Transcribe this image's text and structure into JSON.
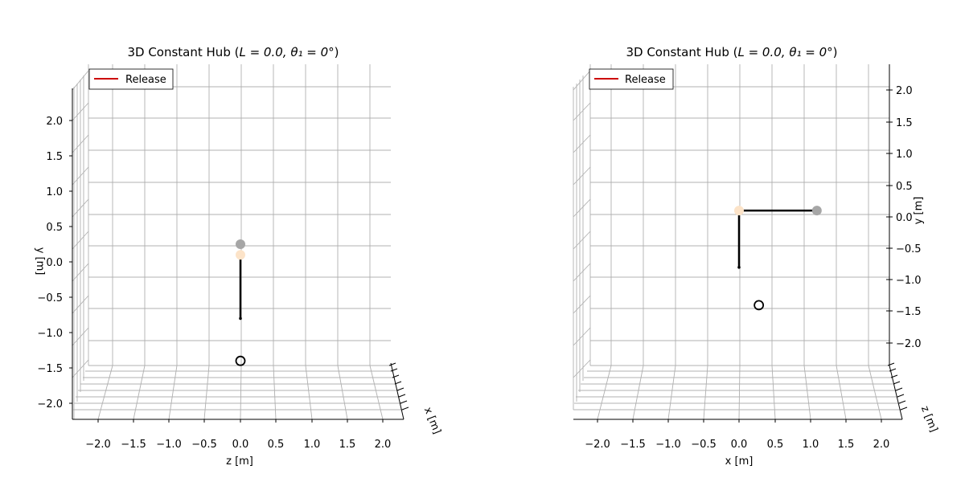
{
  "chart_data": [
    {
      "type": "scatter",
      "projection": "3d",
      "title_text": "3D Constant Hub (",
      "title_math": "L = 0.0, θ₁ = 0°",
      "title_close": ")",
      "view": "z-axis horizontal, y-axis vertical (left), x-axis depth",
      "xlabel": "z [m]",
      "ylabel": "y [m]",
      "depthlabel": "x [m]",
      "horizontal_ticks": [
        "−2.0",
        "−1.5",
        "−1.0",
        "−0.5",
        "0.0",
        "0.5",
        "1.0",
        "1.5",
        "2.0"
      ],
      "vertical_ticks": [
        "−2.0",
        "−1.5",
        "−1.0",
        "−0.5",
        "0.0",
        "0.5",
        "1.0",
        "1.5",
        "2.0"
      ],
      "legend": {
        "entries": [
          {
            "label": "Release",
            "color": "#cc0000"
          }
        ],
        "location": "top-left"
      },
      "grid": true,
      "links": [
        {
          "from": [
            0.0,
            -0.8
          ],
          "to": [
            0.0,
            0.1
          ]
        }
      ],
      "points": [
        {
          "name": "pivot",
          "h": 0.0,
          "v": -0.8,
          "color": "#000000",
          "kind": "small-dot"
        },
        {
          "name": "hub",
          "h": 0.0,
          "v": 0.1,
          "color": "#fce3c8",
          "kind": "dot"
        },
        {
          "name": "tip",
          "h": 0.0,
          "v": 0.25,
          "color": "#a6a6a6",
          "kind": "dot"
        },
        {
          "name": "target",
          "h": 0.0,
          "v": -1.4,
          "color": "#000000",
          "kind": "ring"
        }
      ]
    },
    {
      "type": "scatter",
      "projection": "3d",
      "title_text": "3D Constant Hub (",
      "title_math": "L = 0.0, θ₁ = 0°",
      "title_close": ")",
      "view": "x-axis horizontal, y-axis vertical (right), z-axis depth",
      "xlabel": "x [m]",
      "ylabel": "y [m]",
      "depthlabel": "z [m]",
      "horizontal_ticks": [
        "−2.0",
        "−1.5",
        "−1.0",
        "−0.5",
        "0.0",
        "0.5",
        "1.0",
        "1.5",
        "2.0"
      ],
      "vertical_ticks": [
        "−2.0",
        "−1.5",
        "−1.0",
        "−0.5",
        "0.0",
        "0.5",
        "1.0",
        "1.5",
        "2.0"
      ],
      "legend": {
        "entries": [
          {
            "label": "Release",
            "color": "#cc0000"
          }
        ],
        "location": "top-left"
      },
      "grid": true,
      "links": [
        {
          "from": [
            0.0,
            -0.8
          ],
          "to": [
            0.0,
            0.1
          ]
        },
        {
          "from": [
            0.0,
            0.1
          ],
          "to": [
            1.1,
            0.1
          ]
        }
      ],
      "points": [
        {
          "name": "pivot",
          "h": 0.0,
          "v": -0.8,
          "color": "#000000",
          "kind": "small-dot"
        },
        {
          "name": "hub",
          "h": 0.0,
          "v": 0.1,
          "color": "#fce3c8",
          "kind": "dot"
        },
        {
          "name": "tip",
          "h": 1.1,
          "v": 0.1,
          "color": "#a6a6a6",
          "kind": "dot"
        },
        {
          "name": "target",
          "h": 0.28,
          "v": -1.4,
          "color": "#000000",
          "kind": "ring"
        }
      ]
    }
  ]
}
